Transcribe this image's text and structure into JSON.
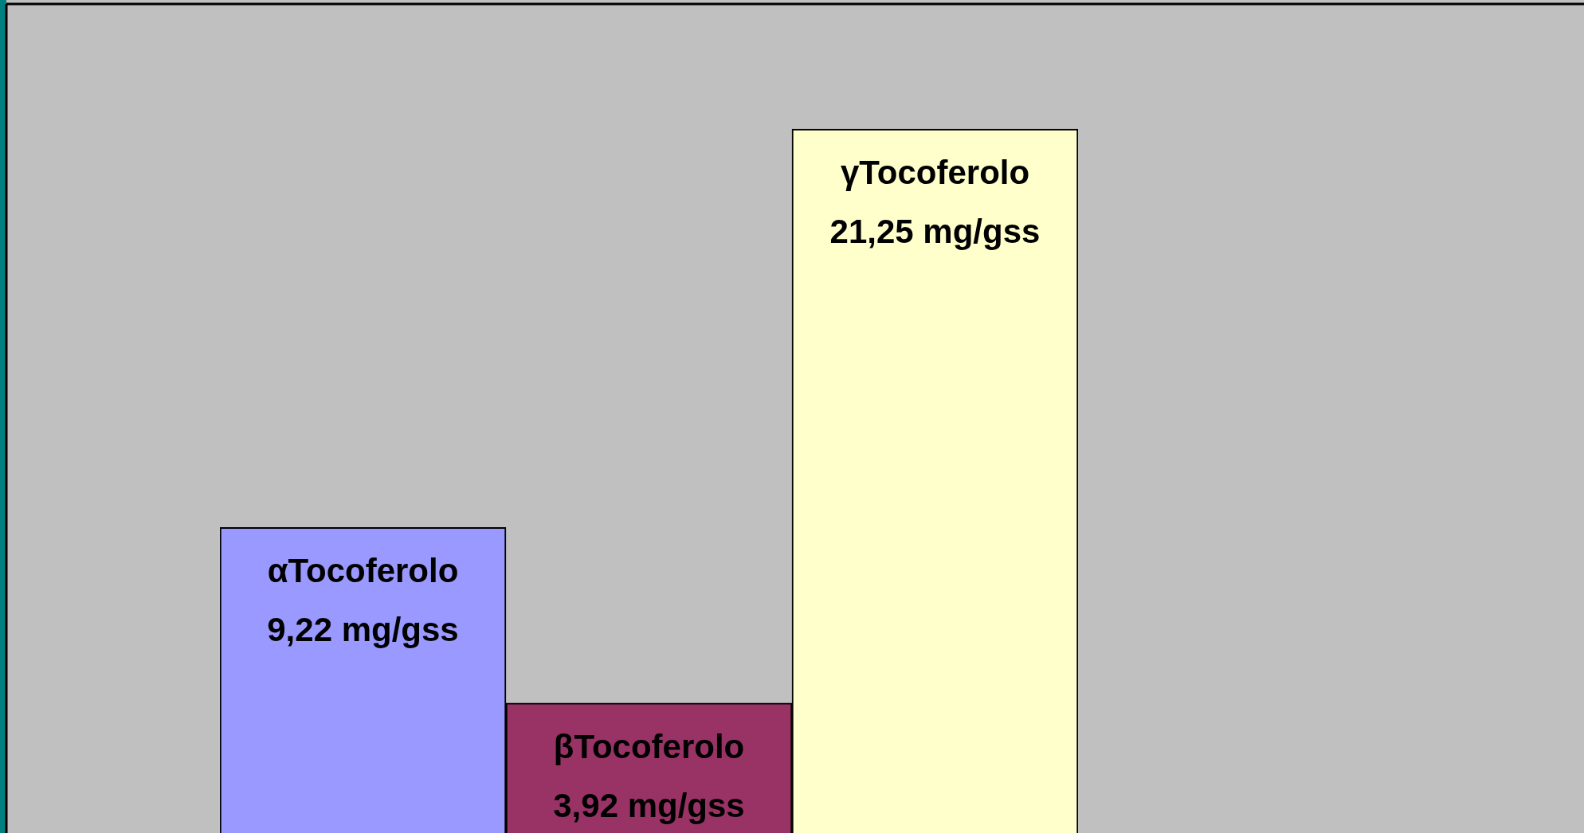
{
  "chart_data": {
    "type": "bar",
    "categories": [
      "αTocoferolo",
      "βTocoferolo",
      "γTocoferolo"
    ],
    "values": [
      9.22,
      3.92,
      21.25
    ],
    "colors": [
      "#9999ff",
      "#993366",
      "#ffffcc"
    ],
    "value_labels": [
      "9,22 mg/gss",
      "3,92 mg/gss",
      "21,25 mg/gss"
    ],
    "ylim": [
      0,
      25
    ],
    "tick_labels": false
  }
}
